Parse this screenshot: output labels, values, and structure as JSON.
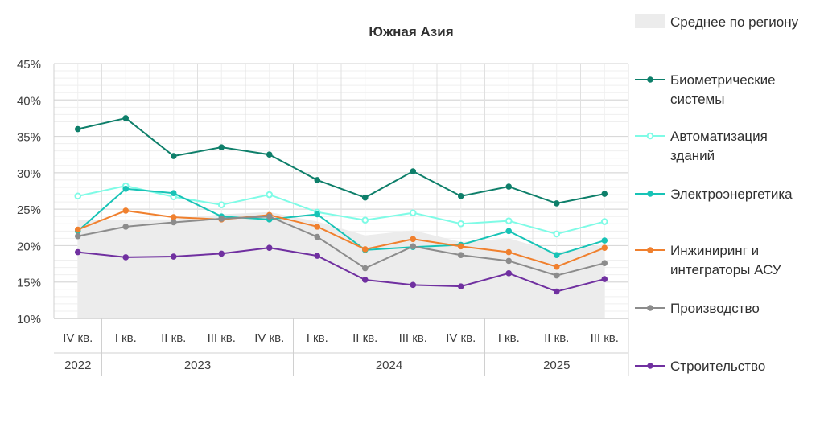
{
  "chart_data": {
    "type": "line",
    "title": "Южная Азия",
    "ylim": [
      10,
      45
    ],
    "yticks": [
      "10%",
      "15%",
      "20%",
      "25%",
      "30%",
      "35%",
      "40%",
      "45%"
    ],
    "ytick_values": [
      10,
      15,
      20,
      25,
      30,
      35,
      40,
      45
    ],
    "categories": [
      "IV кв.",
      "I кв.",
      "II кв.",
      "III кв.",
      "IV кв.",
      "I кв.",
      "II кв.",
      "III кв.",
      "IV кв.",
      "I кв.",
      "II кв.",
      "III кв."
    ],
    "years": [
      {
        "label": "2022",
        "span": 1
      },
      {
        "label": "2023",
        "span": 4
      },
      {
        "label": "2024",
        "span": 4
      },
      {
        "label": "2025",
        "span": 3
      }
    ],
    "area": {
      "name": "Среднее по региону",
      "color": "#ececec",
      "values": [
        23.5,
        23.6,
        23.6,
        24.3,
        24.6,
        23.3,
        21.4,
        22.1,
        20.5,
        21.0,
        19.1,
        20.2
      ]
    },
    "series": [
      {
        "name": "Биометрические системы",
        "lines": [
          "Биометрические",
          "системы"
        ],
        "color": "#0e7f6a",
        "hollow": false,
        "values": [
          36.0,
          37.5,
          32.3,
          33.5,
          32.5,
          29.0,
          26.6,
          30.2,
          26.8,
          28.1,
          25.8,
          27.1
        ]
      },
      {
        "name": "Автоматизация зданий",
        "lines": [
          "Автоматизация",
          "зданий"
        ],
        "color": "#7ffbe6",
        "hollow": true,
        "values": [
          26.8,
          28.2,
          26.7,
          25.6,
          27.0,
          24.6,
          23.5,
          24.5,
          23.0,
          23.4,
          21.6,
          23.3
        ]
      },
      {
        "name": "Электроэнергетика",
        "lines": [
          "Электроэнергетика"
        ],
        "color": "#17c3b6",
        "hollow": false,
        "values": [
          22.0,
          27.8,
          27.2,
          24.0,
          23.6,
          24.3,
          19.4,
          19.8,
          20.1,
          22.0,
          18.7,
          20.7
        ]
      },
      {
        "name": "Инжиниринг и интеграторы АСУ",
        "lines": [
          "Инжиниринг и",
          "интеграторы АСУ"
        ],
        "color": "#f0802e",
        "hollow": false,
        "values": [
          22.2,
          24.8,
          23.9,
          23.6,
          24.2,
          22.6,
          19.5,
          20.9,
          19.9,
          19.1,
          17.1,
          19.7
        ]
      },
      {
        "name": "Производство",
        "lines": [
          "Производство"
        ],
        "color": "#8c8c8c",
        "hollow": false,
        "values": [
          21.3,
          22.6,
          23.2,
          23.7,
          24.0,
          21.2,
          16.9,
          19.9,
          18.7,
          17.9,
          15.9,
          17.6
        ]
      },
      {
        "name": "Строительство",
        "lines": [
          "Строительство"
        ],
        "color": "#7030a0",
        "hollow": false,
        "values": [
          19.1,
          18.4,
          18.5,
          18.9,
          19.7,
          18.6,
          15.3,
          14.6,
          14.4,
          16.2,
          13.7,
          15.4
        ]
      }
    ],
    "grid": true,
    "legend": "right"
  }
}
